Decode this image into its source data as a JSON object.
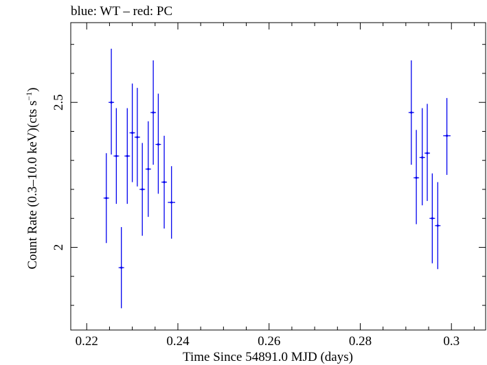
{
  "chart_data": {
    "type": "scatter",
    "title": "blue: WT – red: PC",
    "xlabel": "Time Since 54891.0 MJD (days)",
    "ylabel_main": "Count Rate (0.3–10.0 keV)(cts s",
    "ylabel_sup": "−1",
    "ylabel_end": ")",
    "xlim": [
      0.2165,
      0.3075
    ],
    "ylim": [
      1.715,
      2.775
    ],
    "xticks": [
      0.22,
      0.24,
      0.26,
      0.28,
      0.3
    ],
    "xtick_labels": [
      "0.22",
      "0.24",
      "0.26",
      "0.28",
      "0.3"
    ],
    "yticks": [
      2.0,
      2.5
    ],
    "ytick_labels": [
      "2",
      "2.5"
    ],
    "grid": false,
    "series": [
      {
        "color": "#0000ee",
        "points": [
          {
            "x": 0.2243,
            "y": 2.17,
            "xerr": 0.0006,
            "ylo": 2.015,
            "yhi": 2.325
          },
          {
            "x": 0.2254,
            "y": 2.5,
            "xerr": 0.0006,
            "ylo": 2.32,
            "yhi": 2.685
          },
          {
            "x": 0.2265,
            "y": 2.315,
            "xerr": 0.0006,
            "ylo": 2.15,
            "yhi": 2.48
          },
          {
            "x": 0.2276,
            "y": 1.93,
            "xerr": 0.0006,
            "ylo": 1.79,
            "yhi": 2.07
          },
          {
            "x": 0.2289,
            "y": 2.315,
            "xerr": 0.0006,
            "ylo": 2.15,
            "yhi": 2.48
          },
          {
            "x": 0.23,
            "y": 2.395,
            "xerr": 0.0006,
            "ylo": 2.225,
            "yhi": 2.565
          },
          {
            "x": 0.2311,
            "y": 2.38,
            "xerr": 0.0006,
            "ylo": 2.21,
            "yhi": 2.55
          },
          {
            "x": 0.2322,
            "y": 2.2,
            "xerr": 0.0006,
            "ylo": 2.04,
            "yhi": 2.36
          },
          {
            "x": 0.2335,
            "y": 2.27,
            "xerr": 0.0006,
            "ylo": 2.105,
            "yhi": 2.435
          },
          {
            "x": 0.2346,
            "y": 2.465,
            "xerr": 0.0006,
            "ylo": 2.285,
            "yhi": 2.645
          },
          {
            "x": 0.2357,
            "y": 2.355,
            "xerr": 0.0006,
            "ylo": 2.185,
            "yhi": 2.53
          },
          {
            "x": 0.237,
            "y": 2.225,
            "xerr": 0.0006,
            "ylo": 2.065,
            "yhi": 2.385
          },
          {
            "x": 0.2386,
            "y": 2.155,
            "xerr": 0.0008,
            "ylo": 2.03,
            "yhi": 2.28
          },
          {
            "x": 0.2912,
            "y": 2.465,
            "xerr": 0.0006,
            "ylo": 2.285,
            "yhi": 2.645
          },
          {
            "x": 0.2923,
            "y": 2.24,
            "xerr": 0.0006,
            "ylo": 2.08,
            "yhi": 2.405
          },
          {
            "x": 0.2936,
            "y": 2.31,
            "xerr": 0.0006,
            "ylo": 2.145,
            "yhi": 2.48
          },
          {
            "x": 0.2947,
            "y": 2.325,
            "xerr": 0.0006,
            "ylo": 2.16,
            "yhi": 2.495
          },
          {
            "x": 0.2958,
            "y": 2.1,
            "xerr": 0.0006,
            "ylo": 1.945,
            "yhi": 2.255
          },
          {
            "x": 0.297,
            "y": 2.075,
            "xerr": 0.0006,
            "ylo": 1.925,
            "yhi": 2.225
          },
          {
            "x": 0.299,
            "y": 2.385,
            "xerr": 0.0008,
            "ylo": 2.25,
            "yhi": 2.515
          }
        ]
      }
    ]
  }
}
